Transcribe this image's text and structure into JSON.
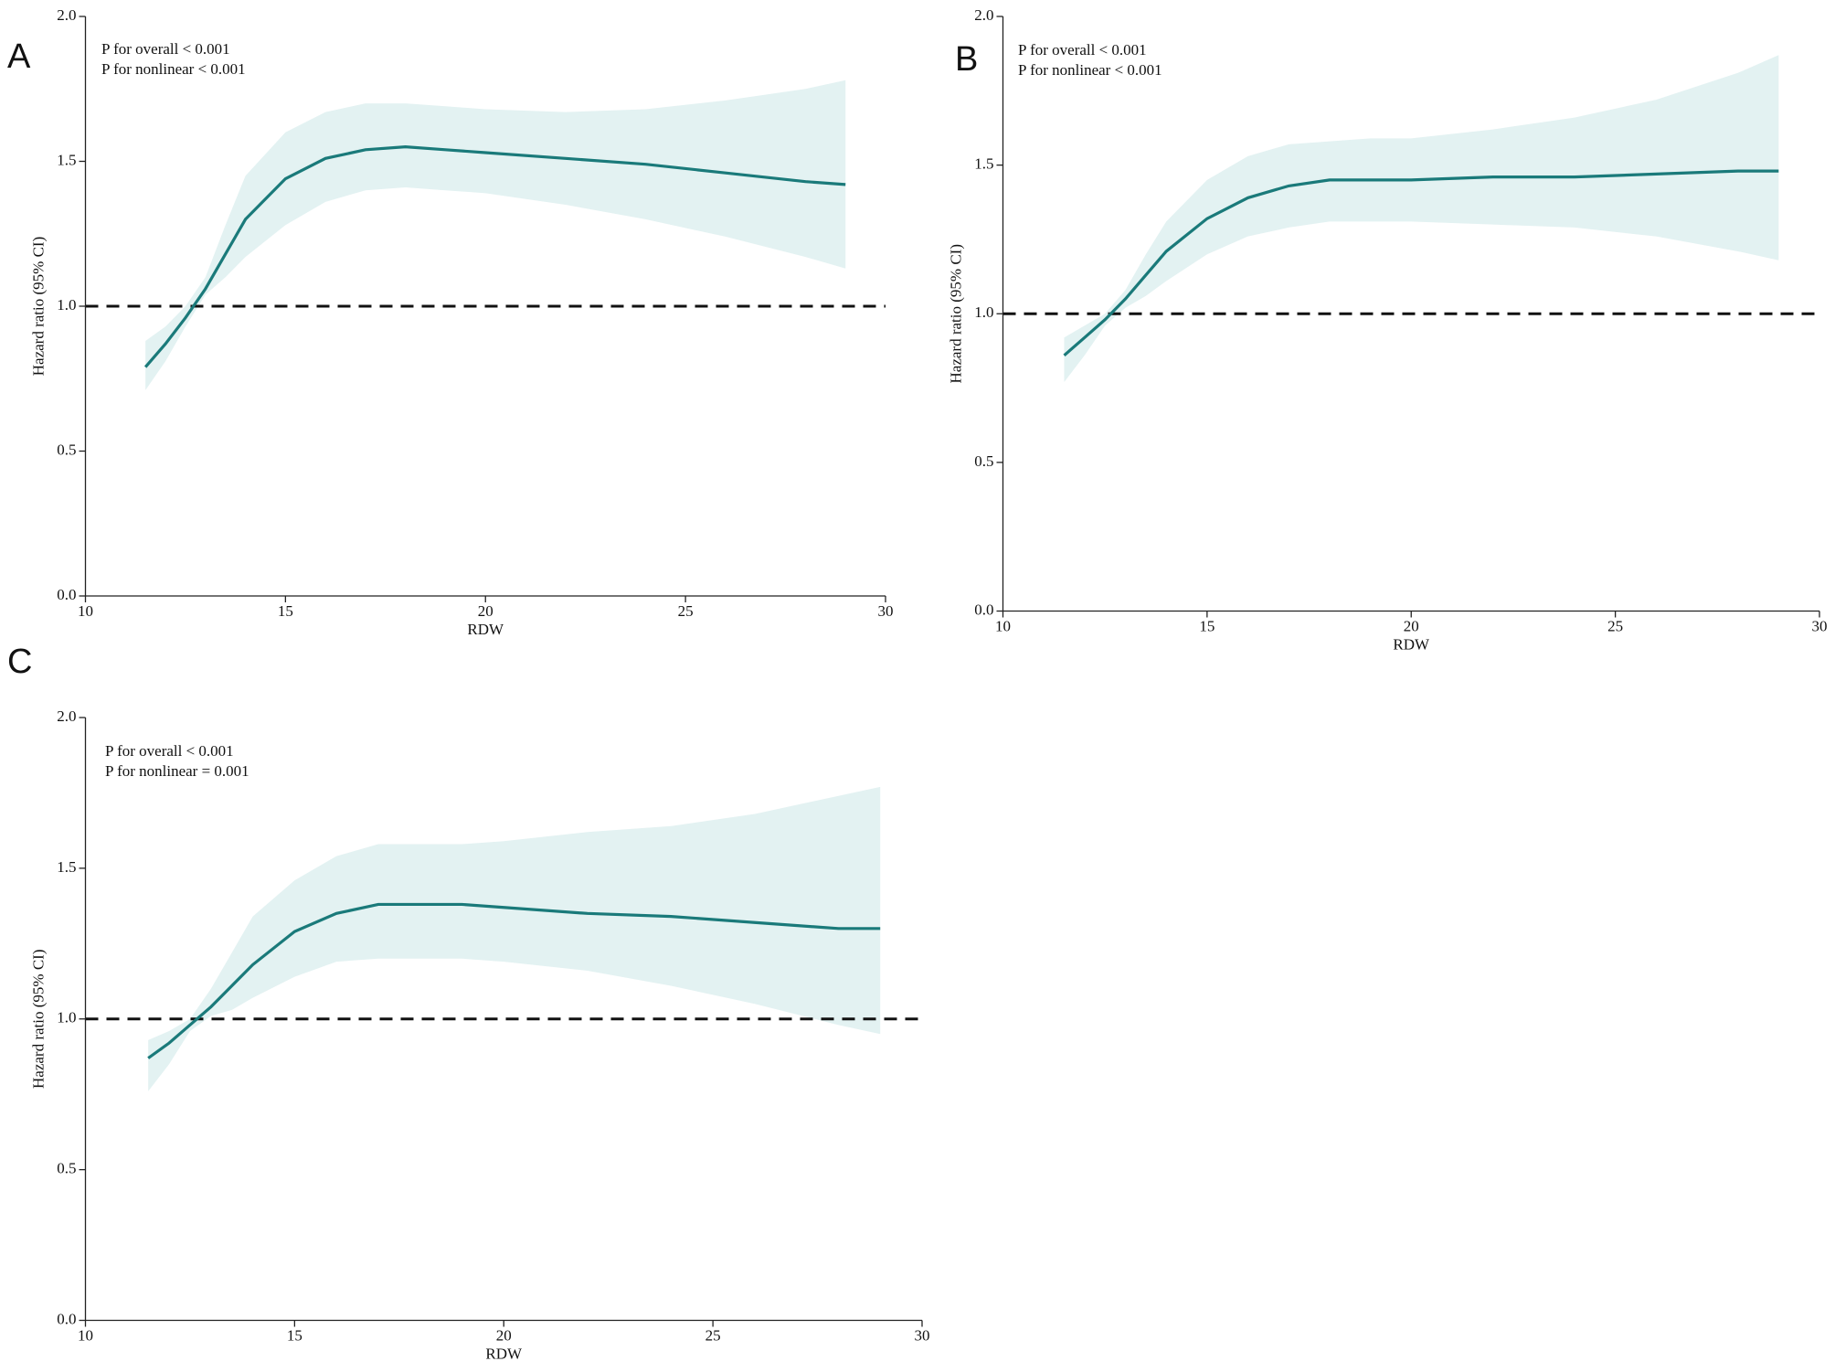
{
  "chart_data": [
    {
      "type": "line",
      "panel": "A",
      "annotations": [
        "P for overall < 0.001",
        "P for nonlinear < 0.001"
      ],
      "xlabel": "RDW",
      "ylabel": "Hazard ratio (95% CI)",
      "xlim": [
        10,
        30
      ],
      "ylim": [
        0,
        2
      ],
      "xticks": [
        10,
        15,
        20,
        25,
        30
      ],
      "yticks": [
        {
          "value": 0,
          "label": "0.0"
        },
        0.5,
        {
          "value": 1,
          "label": "1.0"
        },
        1.5,
        {
          "value": 2,
          "label": "2.0"
        }
      ],
      "reference_line": 1,
      "color": "#1a7a7a",
      "band_color": "#e3f2f2",
      "x": [
        11.5,
        12,
        12.5,
        13,
        13.5,
        14,
        15,
        16,
        17,
        18,
        19,
        20,
        22,
        24,
        26,
        28,
        29
      ],
      "values": [
        0.79,
        0.87,
        0.96,
        1.06,
        1.18,
        1.3,
        1.44,
        1.51,
        1.54,
        1.55,
        1.54,
        1.53,
        1.51,
        1.49,
        1.46,
        1.43,
        1.42
      ],
      "lower": [
        0.71,
        0.81,
        0.93,
        1.04,
        1.1,
        1.17,
        1.28,
        1.36,
        1.4,
        1.41,
        1.4,
        1.39,
        1.35,
        1.3,
        1.24,
        1.17,
        1.13
      ],
      "upper": [
        0.88,
        0.93,
        1.0,
        1.1,
        1.28,
        1.45,
        1.6,
        1.67,
        1.7,
        1.7,
        1.69,
        1.68,
        1.67,
        1.68,
        1.71,
        1.75,
        1.78
      ]
    },
    {
      "type": "line",
      "panel": "B",
      "annotations": [
        "P for overall < 0.001",
        "P for nonlinear < 0.001"
      ],
      "xlabel": "RDW",
      "ylabel": "Hazard ratio (95% CI)",
      "xlim": [
        10,
        30
      ],
      "ylim": [
        0,
        2
      ],
      "xticks": [
        10,
        15,
        20,
        25,
        30
      ],
      "yticks": [
        {
          "value": 0,
          "label": "0.0"
        },
        0.5,
        {
          "value": 1,
          "label": "1.0"
        },
        1.5,
        {
          "value": 2,
          "label": "2.0"
        }
      ],
      "reference_line": 1,
      "color": "#1a7a7a",
      "band_color": "#e3f2f2",
      "x": [
        11.5,
        12,
        12.5,
        13,
        13.5,
        14,
        15,
        16,
        17,
        18,
        19,
        20,
        22,
        24,
        26,
        28,
        29
      ],
      "values": [
        0.86,
        0.92,
        0.98,
        1.05,
        1.13,
        1.21,
        1.32,
        1.39,
        1.43,
        1.45,
        1.45,
        1.45,
        1.46,
        1.46,
        1.47,
        1.48,
        1.48
      ],
      "lower": [
        0.77,
        0.86,
        0.96,
        1.02,
        1.06,
        1.11,
        1.2,
        1.26,
        1.29,
        1.31,
        1.31,
        1.31,
        1.3,
        1.29,
        1.26,
        1.21,
        1.18
      ],
      "upper": [
        0.92,
        0.96,
        1.0,
        1.08,
        1.2,
        1.31,
        1.45,
        1.53,
        1.57,
        1.58,
        1.59,
        1.59,
        1.62,
        1.66,
        1.72,
        1.81,
        1.87
      ]
    },
    {
      "type": "line",
      "panel": "C",
      "annotations": [
        "P for overall < 0.001",
        "P for nonlinear = 0.001"
      ],
      "xlabel": "RDW",
      "ylabel": "Hazard ratio (95% CI)",
      "xlim": [
        10,
        30
      ],
      "ylim": [
        0,
        2
      ],
      "xticks": [
        10,
        15,
        20,
        25,
        30
      ],
      "yticks": [
        {
          "value": 0,
          "label": "0.0"
        },
        0.5,
        {
          "value": 1,
          "label": "1.0"
        },
        1.5,
        {
          "value": 2,
          "label": "2.0"
        }
      ],
      "reference_line": 1,
      "color": "#1a7a7a",
      "band_color": "#e3f2f2",
      "x": [
        11.5,
        12,
        12.5,
        13,
        13.5,
        14,
        15,
        16,
        17,
        18,
        19,
        20,
        22,
        24,
        26,
        28,
        29
      ],
      "values": [
        0.87,
        0.92,
        0.98,
        1.04,
        1.11,
        1.18,
        1.29,
        1.35,
        1.38,
        1.38,
        1.38,
        1.37,
        1.35,
        1.34,
        1.32,
        1.3,
        1.3
      ],
      "lower": [
        0.76,
        0.85,
        0.96,
        1.01,
        1.03,
        1.07,
        1.14,
        1.19,
        1.2,
        1.2,
        1.2,
        1.19,
        1.16,
        1.11,
        1.05,
        0.98,
        0.95
      ],
      "upper": [
        0.93,
        0.96,
        1.0,
        1.1,
        1.22,
        1.34,
        1.46,
        1.54,
        1.58,
        1.58,
        1.58,
        1.59,
        1.62,
        1.64,
        1.68,
        1.74,
        1.77
      ]
    }
  ]
}
